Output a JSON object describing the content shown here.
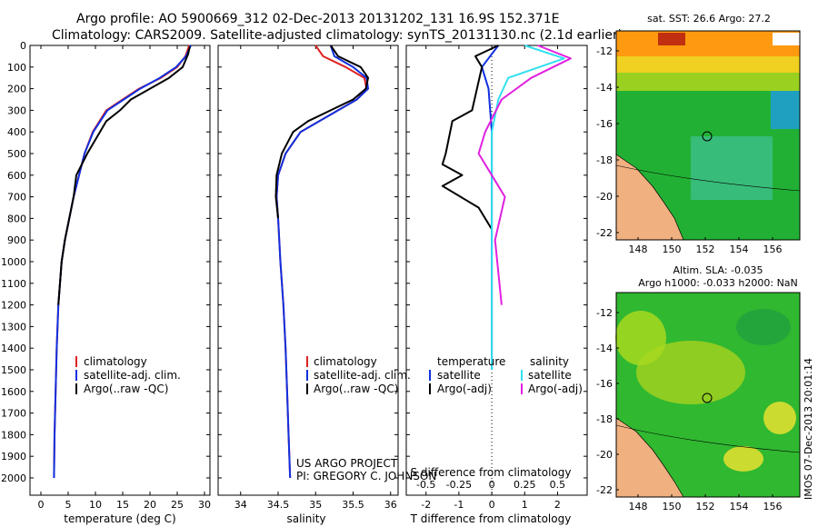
{
  "header": {
    "line1": "Argo profile: AO 5900669_312 02-Dec-2013 20131202_131 16.9S 152.371E",
    "line2": "Climatology: CARS2009. Satellite-adjusted climatology: synTS_20131130.nc (2.1d earlier)"
  },
  "colors": {
    "climatology": "#e02020",
    "satellite": "#1030e0",
    "argo": "#000000",
    "sat_salinity": "#30e0f0",
    "argo_salinity": "#e020e0"
  },
  "depth_axis": {
    "ticks": [
      "0",
      "100",
      "200",
      "300",
      "400",
      "500",
      "600",
      "700",
      "800",
      "900",
      "1000",
      "1100",
      "1200",
      "1300",
      "1400",
      "1500",
      "1600",
      "1700",
      "1800",
      "1900",
      "2000"
    ]
  },
  "temperature_panel": {
    "xlabel": "temperature (deg C)",
    "xticks": [
      "0",
      "5",
      "10",
      "15",
      "20",
      "25",
      "30"
    ],
    "legend": [
      "climatology",
      "satellite-adj. clim.",
      "Argo(..raw -QC)"
    ]
  },
  "salinity_panel": {
    "xlabel": "salinity",
    "xticks": [
      "34",
      "34.5",
      "35",
      "35.5",
      "36"
    ],
    "legend": [
      "climatology",
      "satellite-adj. clim.",
      "Argo(..raw -QC)"
    ],
    "project": "US ARGO PROJECT",
    "pi": "PI: GREGORY C. JOHNSON"
  },
  "difference_panel": {
    "top_xticks": [
      "-0.5",
      "-0.25",
      "0",
      "0.25",
      "0.5"
    ],
    "bottom_xticks": [
      "-2",
      "-1",
      "0",
      "1",
      "2"
    ],
    "top_label": "S difference from climatology",
    "xlabel": "T difference from climatology",
    "legend": {
      "temp_title": "temperature",
      "sal_title": "salinity",
      "sat": "satellite",
      "argo": "Argo(-adj)"
    }
  },
  "sst_map": {
    "title": "sat. SST: 26.6 Argo: 27.2",
    "xticks": [
      "148",
      "150",
      "152",
      "154",
      "156"
    ],
    "yticks": [
      "-12",
      "-14",
      "-16",
      "-18",
      "-20",
      "-22"
    ]
  },
  "sla_map": {
    "title1": "Altim. SLA: -0.035",
    "title2": "Argo h1000: -0.033 h2000: NaN",
    "xticks": [
      "148",
      "150",
      "152",
      "154",
      "156"
    ],
    "yticks": [
      "-12",
      "-14",
      "-16",
      "-18",
      "-20",
      "-22"
    ]
  },
  "credit": "IMOS 07-Dec-2013 20:01:14",
  "chart_data": [
    {
      "type": "line",
      "title": "temperature",
      "xlabel": "temperature (deg C)",
      "ylabel": "depth",
      "xlim": [
        -2,
        31
      ],
      "ylim": [
        2080,
        0
      ],
      "series": [
        {
          "name": "climatology",
          "x": [
            27.2,
            26.5,
            25,
            22,
            18,
            15,
            12,
            9.5,
            8,
            7,
            6,
            5.2,
            4.4,
            3.8,
            3.2,
            2.9,
            2.7,
            2.6,
            2.5,
            2.45,
            2.4
          ],
          "y": [
            0,
            50,
            100,
            150,
            200,
            250,
            300,
            400,
            500,
            600,
            700,
            800,
            900,
            1000,
            1200,
            1400,
            1600,
            1700,
            1800,
            1900,
            2000
          ]
        },
        {
          "name": "satellite-adj. clim.",
          "x": [
            27.5,
            26.6,
            24.8,
            21.8,
            18.2,
            15.2,
            12.2,
            9.6,
            8,
            7,
            6,
            5.2,
            4.4,
            3.8,
            3.2,
            2.9,
            2.7,
            2.6,
            2.5,
            2.45,
            2.4
          ],
          "y": [
            0,
            50,
            100,
            150,
            200,
            250,
            300,
            400,
            500,
            600,
            700,
            800,
            900,
            1000,
            1200,
            1400,
            1600,
            1700,
            1800,
            1900,
            2000
          ]
        },
        {
          "name": "Argo",
          "x": [
            27.3,
            27,
            26,
            23.5,
            20,
            16.5,
            14.5,
            12,
            8.5,
            6.5,
            6,
            5.2,
            4.4,
            3.8,
            3.2
          ],
          "y": [
            5,
            40,
            100,
            150,
            200,
            250,
            300,
            350,
            500,
            600,
            700,
            800,
            900,
            1000,
            1200
          ]
        }
      ]
    },
    {
      "type": "line",
      "title": "salinity",
      "xlabel": "salinity",
      "ylabel": "depth",
      "xlim": [
        33.7,
        36.1
      ],
      "ylim": [
        2080,
        0
      ],
      "series": [
        {
          "name": "climatology",
          "x": [
            35,
            35.1,
            35.4,
            35.65,
            35.68,
            35.55,
            35.3,
            35.05,
            34.8,
            34.6,
            34.5,
            34.48,
            34.5,
            34.53,
            34.57,
            34.6,
            34.62,
            34.64,
            34.66
          ],
          "y": [
            0,
            50,
            100,
            150,
            200,
            250,
            300,
            350,
            400,
            500,
            600,
            700,
            800,
            1000,
            1200,
            1400,
            1600,
            1800,
            2000
          ]
        },
        {
          "name": "satellite-adj. clim.",
          "x": [
            35.2,
            35.25,
            35.5,
            35.68,
            35.7,
            35.55,
            35.3,
            35.05,
            34.8,
            34.6,
            34.5,
            34.48,
            34.5,
            34.53,
            34.57,
            34.6,
            34.62,
            34.64,
            34.66
          ],
          "y": [
            0,
            50,
            100,
            150,
            200,
            250,
            300,
            350,
            400,
            500,
            600,
            700,
            800,
            1000,
            1200,
            1400,
            1600,
            1800,
            2000
          ]
        },
        {
          "name": "Argo",
          "x": [
            35.2,
            35.3,
            35.6,
            35.7,
            35.67,
            35.5,
            35.2,
            34.9,
            34.7,
            34.55,
            34.48,
            34.47,
            34.5
          ],
          "y": [
            0,
            50,
            100,
            150,
            200,
            250,
            300,
            350,
            400,
            500,
            600,
            700,
            800
          ]
        }
      ]
    },
    {
      "type": "line",
      "title": "difference from climatology",
      "xlabel": "T difference from climatology",
      "x2label": "S difference from climatology",
      "xlim": [
        -2.6,
        2.9
      ],
      "ylim": [
        2080,
        0
      ],
      "series": [
        {
          "name": "temperature satellite",
          "x": [
            0.2,
            -0.3,
            -0.1,
            -0.05,
            0,
            0
          ],
          "y": [
            0,
            100,
            200,
            300,
            400,
            1500
          ]
        },
        {
          "name": "temperature Argo(-adj)",
          "x": [
            0.2,
            -0.5,
            -0.3,
            -0.6,
            -1.2,
            -1.4,
            -1.5,
            -0.9,
            -1.5,
            -0.4,
            0
          ],
          "y": [
            0,
            50,
            100,
            300,
            350,
            500,
            550,
            600,
            650,
            750,
            850
          ]
        },
        {
          "name": "salinity satellite",
          "x": [
            1,
            2.2,
            0.5,
            0.2,
            0,
            0
          ],
          "y": [
            0,
            60,
            150,
            250,
            400,
            1500
          ]
        },
        {
          "name": "salinity Argo(-adj)",
          "x": [
            1.4,
            2.4,
            1.2,
            0.3,
            -0.2,
            -0.4,
            0,
            0.4,
            0.1,
            0.3
          ],
          "y": [
            0,
            60,
            150,
            250,
            400,
            500,
            600,
            700,
            900,
            1200
          ]
        }
      ]
    }
  ]
}
